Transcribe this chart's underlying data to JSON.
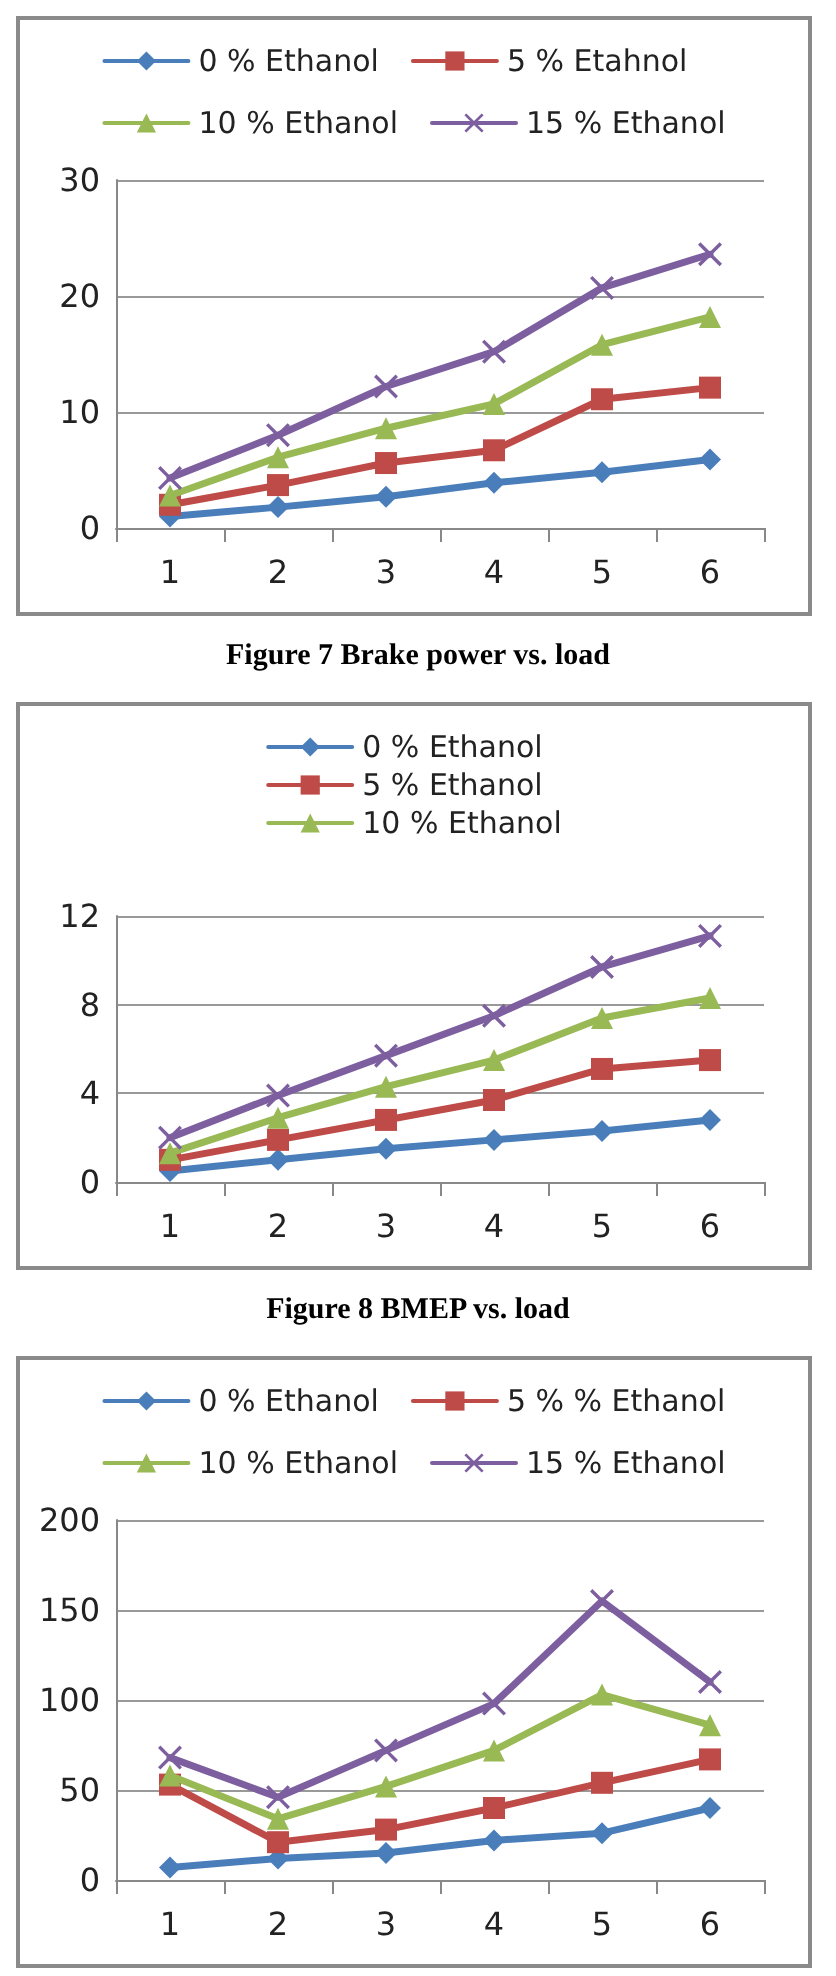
{
  "chart_data": [
    {
      "type": "line",
      "title": "Figure 7 Brake power vs. load",
      "categories": [
        "1",
        "2",
        "3",
        "4",
        "5",
        "6"
      ],
      "ylim": [
        0,
        30
      ],
      "yticks": [
        0,
        10,
        20,
        30
      ],
      "grid": "y",
      "legend": "top",
      "series": [
        {
          "name": "0 % Ethanol",
          "color": "#4a7ebb",
          "marker": "diamond",
          "values": [
            1,
            1.8,
            2.7,
            3.9,
            4.8,
            5.9
          ]
        },
        {
          "name": "5 % Etahnol",
          "color": "#be4b48",
          "marker": "square",
          "values": [
            2,
            3.7,
            5.6,
            6.7,
            11.1,
            12.1
          ]
        },
        {
          "name": "10 % Ethanol",
          "color": "#98b954",
          "marker": "triangle",
          "values": [
            2.8,
            6.1,
            8.6,
            10.7,
            15.8,
            18.2
          ]
        },
        {
          "name": "15 % Ethanol",
          "color": "#7d5fa0",
          "marker": "cross",
          "values": [
            4.3,
            8,
            12.2,
            15.2,
            20.7,
            23.6
          ]
        }
      ]
    },
    {
      "type": "line",
      "title": "Figure 8 BMEP vs. load",
      "categories": [
        "1",
        "2",
        "3",
        "4",
        "5",
        "6"
      ],
      "ylim": [
        0,
        12
      ],
      "yticks": [
        0,
        4,
        8,
        12
      ],
      "grid": "y",
      "legend": "top",
      "series": [
        {
          "name": "0 % Ethanol",
          "color": "#4a7ebb",
          "marker": "diamond",
          "values": [
            0.5,
            1,
            1.5,
            1.9,
            2.3,
            2.8
          ]
        },
        {
          "name": "5 % Ethanol",
          "color": "#be4b48",
          "marker": "square",
          "values": [
            1,
            1.9,
            2.8,
            3.7,
            5.1,
            5.5
          ]
        },
        {
          "name": "10 % Ethanol",
          "color": "#98b954",
          "marker": "triangle",
          "values": [
            1.3,
            2.9,
            4.3,
            5.5,
            7.4,
            8.3
          ]
        },
        {
          "color": "#7d5fa0",
          "marker": "cross",
          "values": [
            2,
            3.9,
            5.7,
            7.5,
            9.7,
            11.1
          ]
        }
      ]
    },
    {
      "type": "line",
      "categories": [
        "1",
        "2",
        "3",
        "4",
        "5",
        "6"
      ],
      "ylim": [
        0,
        200
      ],
      "yticks": [
        0,
        50,
        100,
        150,
        200
      ],
      "grid": "y",
      "legend": "top",
      "series": [
        {
          "name": "0 % Ethanol",
          "color": "#4a7ebb",
          "marker": "diamond",
          "values": [
            7,
            12,
            15,
            22,
            26,
            40
          ]
        },
        {
          "name": "5 % % Ethanol",
          "color": "#be4b48",
          "marker": "square",
          "values": [
            53,
            21,
            28,
            40,
            54,
            67
          ]
        },
        {
          "name": "10 % Ethanol",
          "color": "#98b954",
          "marker": "triangle",
          "values": [
            58,
            34,
            52,
            72,
            103,
            86
          ]
        },
        {
          "name": "15 % Ethanol",
          "color": "#7d5fa0",
          "marker": "cross",
          "values": [
            68,
            46,
            72,
            98,
            155,
            110
          ]
        }
      ]
    }
  ]
}
